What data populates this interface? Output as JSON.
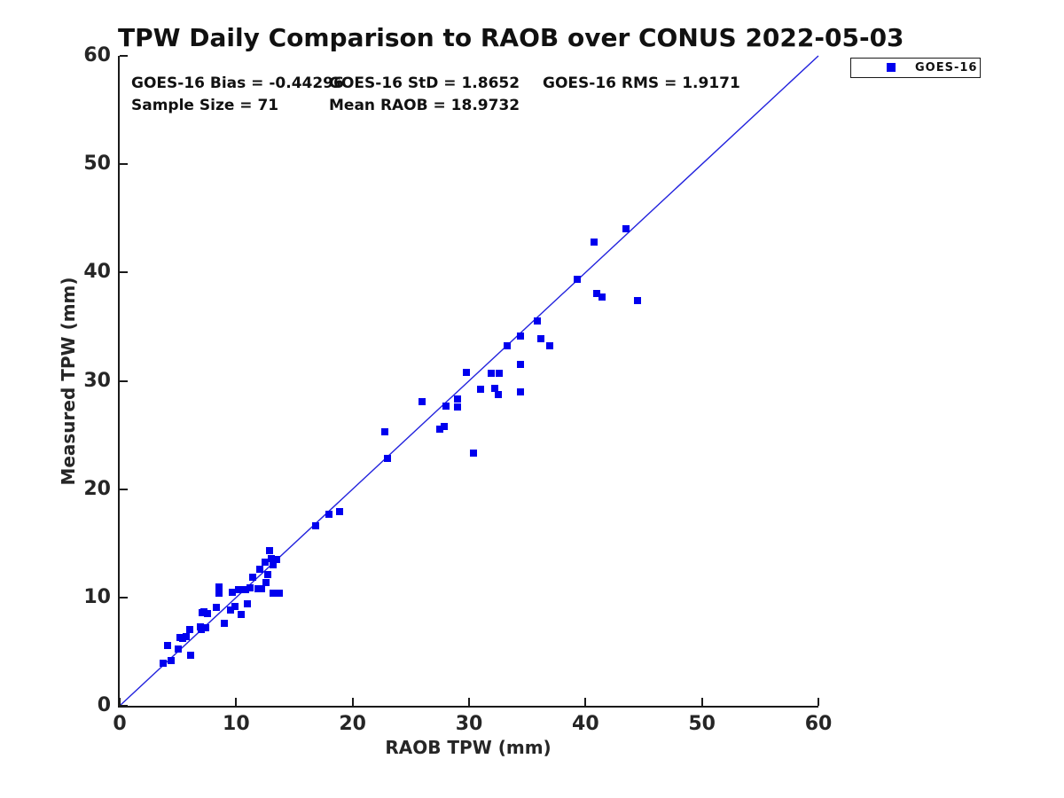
{
  "title": "TPW Daily Comparison to RAOB over CONUS 2022-05-03",
  "stats": {
    "bias": "GOES-16 Bias = -0.44296",
    "std": "GOES-16 StD = 1.8652",
    "rms": "GOES-16 RMS = 1.9171",
    "sample_size": "Sample Size = 71",
    "mean_raob": "Mean RAOB = 18.9732"
  },
  "legend": {
    "position": "top-right-outside",
    "entries": [
      {
        "label": "GOES-16",
        "marker": "filled-square",
        "color": "#0000ee"
      }
    ]
  },
  "colors": {
    "marker": "#0000ee",
    "identity_line": "#2222dd",
    "axis": "#1a1a1a",
    "background": "#ffffff"
  },
  "chart_data": {
    "type": "scatter",
    "title": "TPW Daily Comparison to RAOB over CONUS 2022-05-03",
    "xlabel": "RAOB TPW (mm)",
    "ylabel": "Measured TPW (mm)",
    "xlim": [
      0,
      60
    ],
    "ylim": [
      0,
      60
    ],
    "xticks": [
      0,
      10,
      20,
      30,
      40,
      50,
      60
    ],
    "yticks": [
      0,
      10,
      20,
      30,
      40,
      50,
      60
    ],
    "grid": false,
    "legend_position": "top-right-outside",
    "reference_line": {
      "type": "identity",
      "from": [
        0,
        0
      ],
      "to": [
        60,
        60
      ],
      "color": "#2222dd"
    },
    "annotations": [
      "GOES-16 Bias = -0.44296",
      "GOES-16 StD = 1.8652",
      "GOES-16 RMS = 1.9171",
      "Sample Size = 71",
      "Mean RAOB = 18.9732"
    ],
    "series": [
      {
        "name": "GOES-16",
        "marker": "square",
        "color": "#0000ee",
        "points": [
          [
            3.7,
            3.9
          ],
          [
            4.4,
            4.2
          ],
          [
            4.1,
            5.6
          ],
          [
            5.0,
            5.2
          ],
          [
            5.2,
            6.3
          ],
          [
            5.4,
            6.2
          ],
          [
            5.7,
            6.4
          ],
          [
            6.0,
            7.0
          ],
          [
            6.1,
            4.7
          ],
          [
            6.9,
            7.3
          ],
          [
            7.0,
            7.0
          ],
          [
            7.4,
            7.2
          ],
          [
            7.1,
            8.6
          ],
          [
            7.2,
            8.7
          ],
          [
            7.5,
            8.5
          ],
          [
            8.3,
            9.1
          ],
          [
            9.0,
            7.6
          ],
          [
            9.5,
            8.8
          ],
          [
            9.9,
            9.2
          ],
          [
            10.4,
            8.4
          ],
          [
            11.0,
            9.4
          ],
          [
            8.5,
            11.0
          ],
          [
            8.5,
            10.4
          ],
          [
            9.7,
            10.5
          ],
          [
            10.2,
            10.7
          ],
          [
            10.8,
            10.7
          ],
          [
            11.2,
            10.9
          ],
          [
            11.4,
            11.9
          ],
          [
            11.9,
            10.8
          ],
          [
            12.2,
            10.8
          ],
          [
            12.0,
            12.6
          ],
          [
            12.5,
            13.3
          ],
          [
            12.7,
            12.1
          ],
          [
            12.6,
            11.4
          ],
          [
            12.9,
            14.3
          ],
          [
            13.0,
            13.6
          ],
          [
            13.2,
            13.0
          ],
          [
            13.2,
            10.4
          ],
          [
            13.7,
            10.4
          ],
          [
            13.5,
            13.5
          ],
          [
            16.8,
            16.6
          ],
          [
            18.0,
            17.7
          ],
          [
            18.9,
            17.9
          ],
          [
            22.8,
            25.3
          ],
          [
            23.0,
            22.8
          ],
          [
            26.0,
            28.1
          ],
          [
            27.5,
            25.5
          ],
          [
            27.9,
            25.8
          ],
          [
            28.0,
            27.7
          ],
          [
            29.0,
            28.3
          ],
          [
            29.0,
            27.6
          ],
          [
            30.4,
            23.3
          ],
          [
            29.8,
            30.8
          ],
          [
            31.0,
            29.2
          ],
          [
            31.9,
            30.7
          ],
          [
            32.6,
            30.7
          ],
          [
            32.2,
            29.3
          ],
          [
            32.5,
            28.7
          ],
          [
            34.4,
            29.0
          ],
          [
            33.3,
            33.2
          ],
          [
            34.4,
            34.1
          ],
          [
            34.4,
            31.5
          ],
          [
            35.9,
            35.5
          ],
          [
            36.2,
            33.9
          ],
          [
            36.9,
            33.2
          ],
          [
            39.3,
            39.4
          ],
          [
            40.7,
            42.8
          ],
          [
            41.0,
            38.1
          ],
          [
            41.4,
            37.7
          ],
          [
            43.5,
            44.0
          ],
          [
            44.5,
            37.4
          ]
        ]
      }
    ]
  }
}
